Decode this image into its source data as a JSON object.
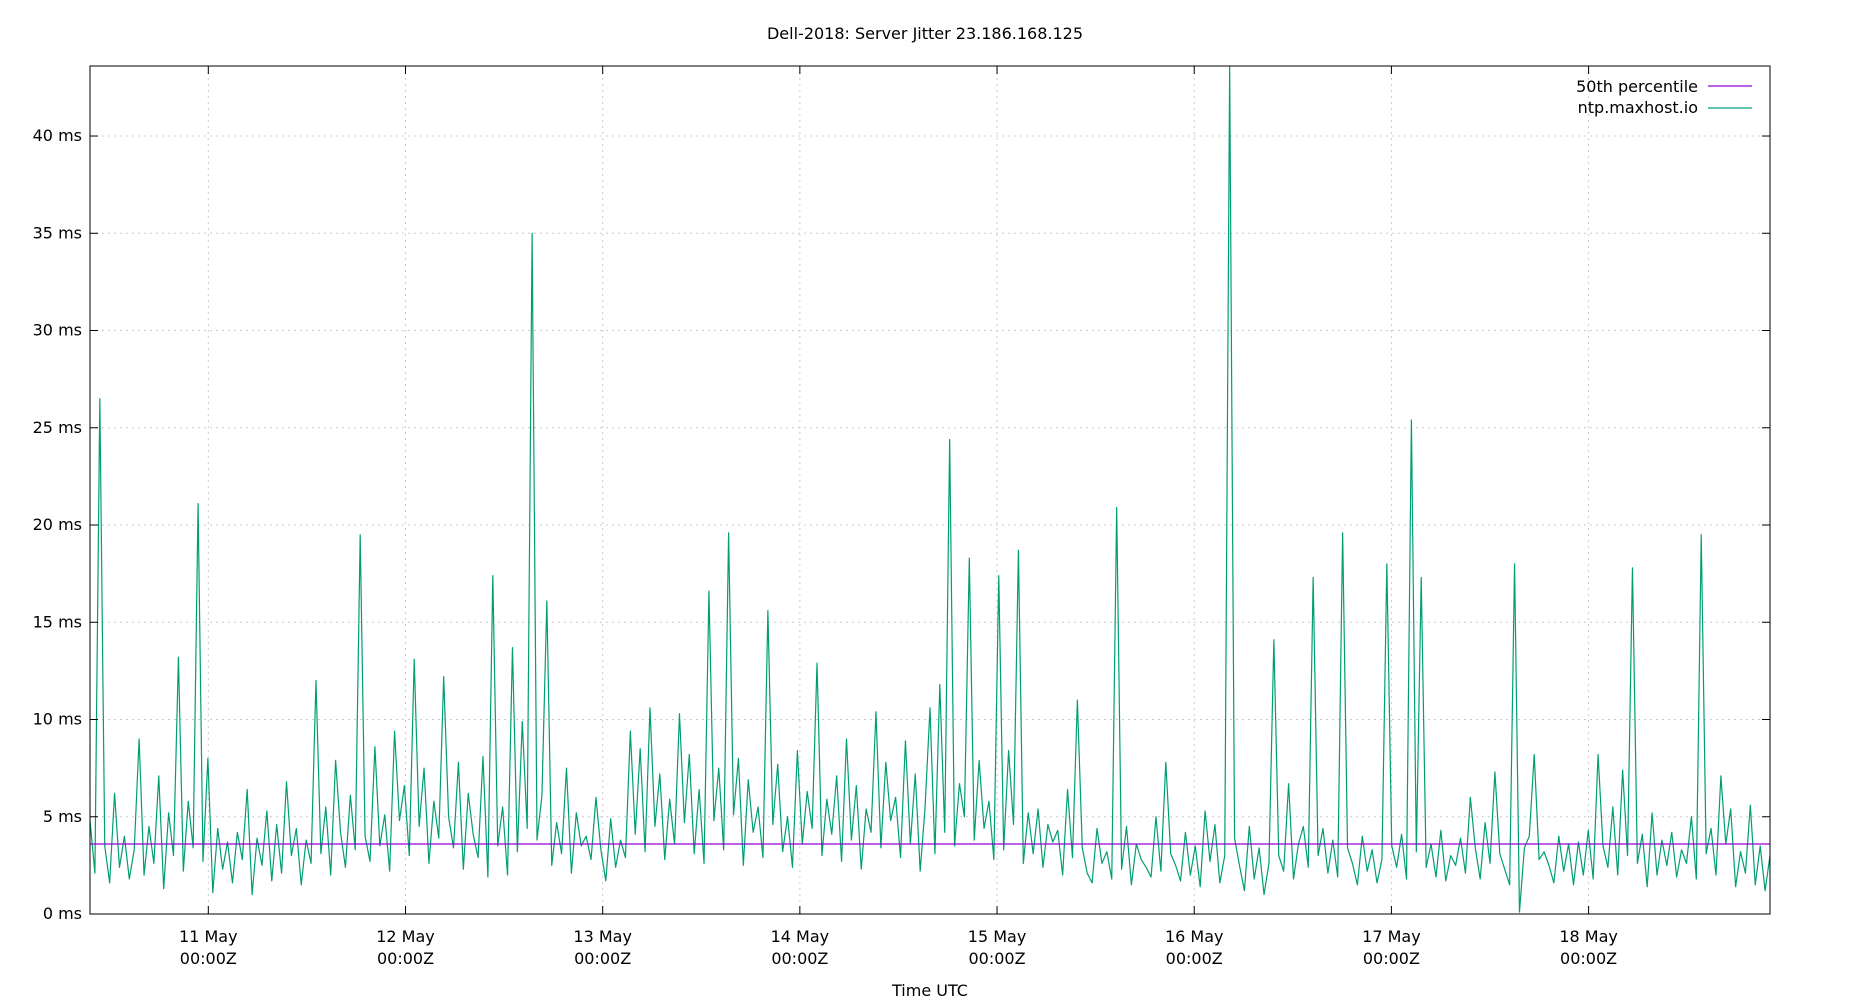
{
  "chart_data": {
    "type": "line",
    "title": "Dell-2018: Server Jitter 23.186.168.125",
    "xlabel": "Time UTC",
    "ylabel": "",
    "ylim": [
      0,
      43.6
    ],
    "xlim_days": [
      10.4,
      18.92
    ],
    "grid": true,
    "legend_position": "top-right",
    "y_ticks": [
      {
        "value": 0,
        "label": "0 ms"
      },
      {
        "value": 5,
        "label": "5 ms"
      },
      {
        "value": 10,
        "label": "10 ms"
      },
      {
        "value": 15,
        "label": "15 ms"
      },
      {
        "value": 20,
        "label": "20 ms"
      },
      {
        "value": 25,
        "label": "25 ms"
      },
      {
        "value": 30,
        "label": "30 ms"
      },
      {
        "value": 35,
        "label": "35 ms"
      },
      {
        "value": 40,
        "label": "40 ms"
      }
    ],
    "x_ticks": [
      {
        "day": 11,
        "label1": "11 May",
        "label2": "00:00Z"
      },
      {
        "day": 12,
        "label1": "12 May",
        "label2": "00:00Z"
      },
      {
        "day": 13,
        "label1": "13 May",
        "label2": "00:00Z"
      },
      {
        "day": 14,
        "label1": "14 May",
        "label2": "00:00Z"
      },
      {
        "day": 15,
        "label1": "15 May",
        "label2": "00:00Z"
      },
      {
        "day": 16,
        "label1": "16 May",
        "label2": "00:00Z"
      },
      {
        "day": 17,
        "label1": "17 May",
        "label2": "00:00Z"
      },
      {
        "day": 18,
        "label1": "18 May",
        "label2": "00:00Z"
      }
    ],
    "series": [
      {
        "name": "50th percentile",
        "color": "#9400d3",
        "constant": 3.6
      },
      {
        "name": "ntp.maxhost.io",
        "color": "#009e73",
        "x_start_day": 10.4,
        "x_end_day": 18.92,
        "values": [
          4.8,
          2.1,
          26.5,
          3.5,
          1.6,
          6.2,
          2.4,
          4.0,
          1.8,
          3.3,
          9.0,
          2.0,
          4.5,
          2.6,
          7.1,
          1.3,
          5.2,
          3.0,
          13.2,
          2.2,
          5.8,
          3.4,
          21.1,
          2.7,
          8.0,
          1.1,
          4.4,
          2.3,
          3.7,
          1.6,
          4.2,
          2.8,
          6.4,
          1.0,
          3.9,
          2.5,
          5.3,
          1.7,
          4.6,
          2.1,
          6.8,
          3.0,
          4.4,
          1.5,
          3.8,
          2.6,
          12.0,
          3.1,
          5.5,
          2.0,
          7.9,
          4.2,
          2.4,
          6.1,
          3.3,
          19.5,
          4.0,
          2.7,
          8.6,
          3.5,
          5.1,
          2.2,
          9.4,
          4.8,
          6.6,
          3.0,
          13.1,
          4.5,
          7.5,
          2.6,
          5.8,
          3.9,
          12.2,
          5.0,
          3.4,
          7.8,
          2.3,
          6.2,
          4.1,
          2.9,
          8.1,
          1.9,
          17.4,
          3.5,
          5.5,
          2.0,
          13.7,
          3.2,
          9.9,
          4.4,
          35.0,
          3.8,
          6.1,
          16.1,
          2.5,
          4.7,
          3.1,
          7.5,
          2.1,
          5.2,
          3.5,
          4.0,
          2.8,
          6.0,
          3.3,
          1.7,
          4.9,
          2.4,
          3.8,
          2.9,
          9.4,
          4.1,
          8.5,
          3.2,
          10.6,
          4.5,
          7.2,
          2.8,
          5.9,
          3.6,
          10.3,
          4.7,
          8.2,
          3.1,
          6.4,
          2.6,
          16.6,
          4.8,
          7.5,
          3.3,
          19.6,
          5.1,
          8.0,
          2.5,
          6.9,
          4.2,
          5.5,
          2.9,
          15.6,
          4.6,
          7.7,
          3.2,
          5.0,
          2.4,
          8.4,
          3.6,
          6.3,
          4.4,
          12.9,
          3.0,
          5.9,
          4.1,
          7.1,
          2.7,
          9.0,
          3.8,
          6.6,
          2.3,
          5.4,
          4.2,
          10.4,
          3.4,
          7.8,
          4.8,
          6.0,
          2.9,
          8.9,
          3.6,
          7.2,
          2.2,
          5.5,
          10.6,
          3.1,
          11.8,
          4.2,
          24.4,
          3.5,
          6.7,
          5.0,
          18.3,
          3.8,
          7.9,
          4.4,
          5.8,
          2.8,
          17.4,
          3.3,
          8.4,
          4.6,
          18.7,
          2.6,
          5.2,
          3.1,
          5.4,
          2.4,
          4.6,
          3.7,
          4.3,
          2.0,
          6.4,
          2.9,
          11.0,
          3.4,
          2.1,
          1.6,
          4.4,
          2.6,
          3.2,
          1.8,
          20.9,
          2.3,
          4.5,
          1.5,
          3.6,
          2.8,
          2.4,
          1.9,
          5.0,
          2.2,
          7.8,
          3.1,
          2.5,
          1.7,
          4.2,
          2.0,
          3.5,
          1.4,
          5.3,
          2.7,
          4.6,
          1.6,
          3.0,
          43.6,
          3.9,
          2.5,
          1.2,
          4.5,
          1.8,
          3.4,
          1.0,
          2.6,
          14.1,
          3.0,
          2.2,
          6.7,
          1.8,
          3.6,
          4.5,
          2.4,
          17.3,
          3.0,
          4.4,
          2.1,
          3.8,
          1.9,
          19.6,
          3.4,
          2.6,
          1.5,
          4.0,
          2.2,
          3.3,
          1.6,
          2.8,
          18.0,
          3.5,
          2.4,
          4.1,
          1.8,
          25.4,
          3.2,
          17.3,
          2.4,
          3.6,
          1.9,
          4.3,
          1.7,
          3.0,
          2.5,
          3.9,
          2.1,
          6.0,
          3.4,
          1.8,
          4.7,
          2.6,
          7.3,
          3.1,
          2.3,
          1.5,
          18.0,
          0.1,
          3.4,
          4.0,
          8.2,
          2.8,
          3.2,
          2.5,
          1.6,
          4.0,
          2.2,
          3.6,
          1.5,
          3.7,
          2.0,
          4.3,
          1.8,
          8.2,
          3.5,
          2.4,
          5.5,
          2.0,
          7.4,
          3.0,
          17.8,
          2.6,
          4.1,
          1.4,
          5.2,
          2.0,
          3.8,
          2.5,
          4.2,
          1.9,
          3.3,
          2.6,
          5.0,
          1.8,
          19.5,
          3.1,
          4.4,
          2.0,
          7.1,
          3.6,
          5.4,
          1.4,
          3.2,
          2.1,
          5.6,
          1.5,
          3.5,
          1.2,
          3.0
        ]
      }
    ]
  }
}
